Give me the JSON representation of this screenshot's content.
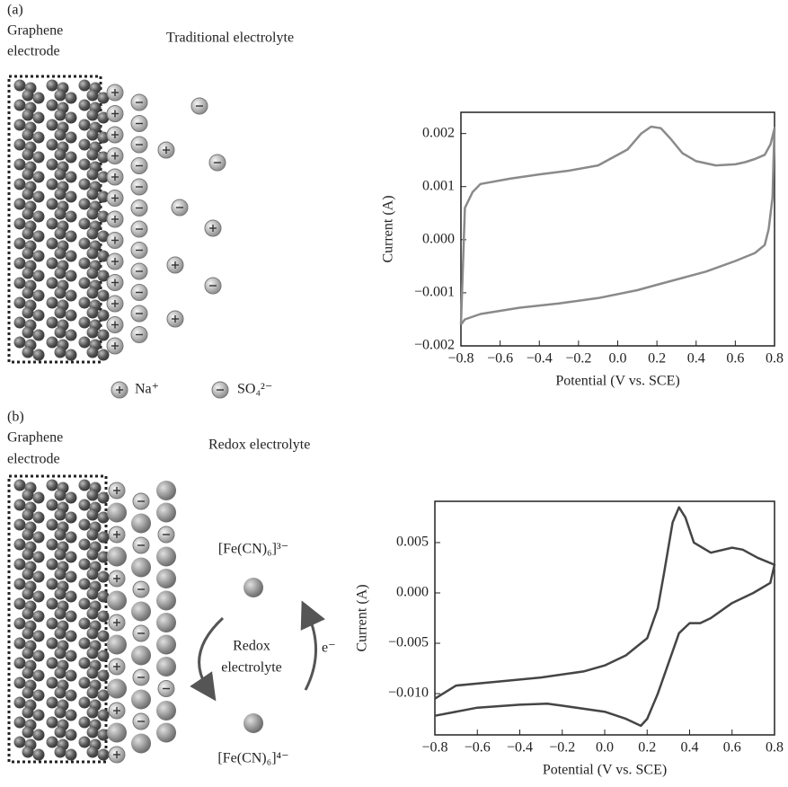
{
  "panels": [
    {
      "label": "(a)",
      "electrode_label": [
        "Graphene",
        "electrode"
      ],
      "electrolyte_label": "Traditional electrolyte",
      "legend": [
        "Na⁺",
        "SO₄²⁻"
      ]
    },
    {
      "label": "(b)",
      "electrode_label": [
        "Graphene",
        "electrode"
      ],
      "electrolyte_label": "Redox electrolyte",
      "oxidized": "[Fe(CN)₆]³⁻",
      "reduced": "[Fe(CN)₆]⁴⁻",
      "cycle_label": [
        "Redox",
        "electrolyte"
      ],
      "electron": "e⁻"
    }
  ],
  "chart_data": [
    {
      "type": "line",
      "ylabel": "Current (A)",
      "xlabel": "Potential (V vs. SCE)",
      "xlim": [
        -0.8,
        0.8
      ],
      "ylim": [
        -0.002,
        0.0024
      ],
      "xticks": [
        {
          "value": -0.8,
          "label": "−0.8"
        },
        {
          "value": -0.6,
          "label": "−0.6"
        },
        {
          "value": -0.4,
          "label": "−0.4"
        },
        {
          "value": -0.2,
          "label": "−0.2"
        },
        {
          "value": 0,
          "label": "0.0"
        },
        0.2,
        0.4,
        0.6,
        0.8
      ],
      "yticks": [
        {
          "value": -0.002,
          "label": "−0.002"
        },
        {
          "value": -0.001,
          "label": "−0.001"
        },
        {
          "value": 0,
          "label": "0.000"
        },
        0.001,
        0.002
      ],
      "x": [
        -0.8,
        -0.79,
        -0.78,
        -0.74,
        -0.7,
        -0.55,
        -0.4,
        -0.25,
        -0.1,
        0.05,
        0.12,
        0.17,
        0.22,
        0.27,
        0.33,
        0.4,
        0.5,
        0.6,
        0.65,
        0.7,
        0.75,
        0.78,
        0.8,
        0.795,
        0.79,
        0.77,
        0.75,
        0.7,
        0.6,
        0.45,
        0.35,
        0.2,
        0.1,
        -0.1,
        -0.3,
        -0.5,
        -0.7,
        -0.78,
        -0.8
      ],
      "series": [
        {
          "color": "#8a8a8a",
          "values": [
            -0.0016,
            -0.0005,
            0.0006,
            0.0009,
            0.00105,
            0.00115,
            0.00123,
            0.0013,
            0.0014,
            0.0017,
            0.002,
            0.00213,
            0.0021,
            0.0019,
            0.00163,
            0.00148,
            0.0014,
            0.00142,
            0.00146,
            0.00152,
            0.0016,
            0.0018,
            0.0021,
            0.0015,
            0.0008,
            0.0002,
            -0.0001,
            -0.00025,
            -0.0004,
            -0.0006,
            -0.0007,
            -0.00085,
            -0.00095,
            -0.0011,
            -0.0012,
            -0.00128,
            -0.0014,
            -0.0015,
            -0.0016
          ]
        }
      ]
    },
    {
      "type": "line",
      "ylabel": "Current (A)",
      "xlabel": "Potential (V vs. SCE)",
      "xlim": [
        -0.8,
        0.8
      ],
      "ylim": [
        -0.0141,
        0.0091
      ],
      "xticks": [
        {
          "value": -0.8,
          "label": "−0.8"
        },
        {
          "value": -0.6,
          "label": "−0.6"
        },
        {
          "value": -0.4,
          "label": "−0.4"
        },
        {
          "value": -0.2,
          "label": "−0.2"
        },
        {
          "value": 0,
          "label": "0.0"
        },
        0.2,
        0.4,
        0.6,
        0.8
      ],
      "yticks": [
        {
          "value": -0.01,
          "label": "−0.010"
        },
        {
          "value": -0.005,
          "label": "−0.005"
        },
        {
          "value": 0,
          "label": "0.000"
        },
        0.005
      ],
      "x": [
        -0.8,
        -0.7,
        -0.5,
        -0.3,
        -0.1,
        0,
        0.1,
        0.2,
        0.25,
        0.28,
        0.32,
        0.35,
        0.38,
        0.42,
        0.5,
        0.6,
        0.65,
        0.72,
        0.8,
        0.78,
        0.7,
        0.6,
        0.5,
        0.45,
        0.4,
        0.35,
        0.3,
        0.25,
        0.2,
        0.17,
        0.1,
        0,
        -0.2,
        -0.27,
        -0.4,
        -0.6,
        -0.8
      ],
      "series": [
        {
          "color": "#454545",
          "values": [
            -0.0105,
            -0.0092,
            -0.0088,
            -0.0084,
            -0.0078,
            -0.0072,
            -0.0062,
            -0.0045,
            -0.0015,
            0.002,
            0.007,
            0.0085,
            0.0075,
            0.005,
            0.004,
            0.0045,
            0.0043,
            0.0035,
            0.0028,
            0.001,
            0,
            -0.001,
            -0.0025,
            -0.003,
            -0.003,
            -0.004,
            -0.007,
            -0.01,
            -0.0125,
            -0.0132,
            -0.0125,
            -0.0118,
            -0.0112,
            -0.011,
            -0.0111,
            -0.0114,
            -0.0122
          ]
        }
      ]
    }
  ]
}
